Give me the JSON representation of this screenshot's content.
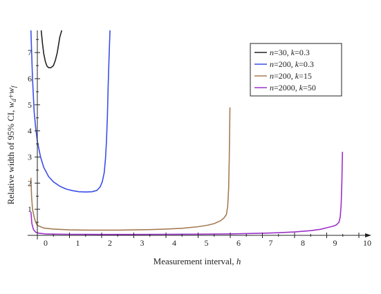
{
  "chart_data": {
    "type": "line",
    "xlabel": {
      "text": "Measurement interval, ",
      "var": "h"
    },
    "ylabel": {
      "text": "Relative width of 95% CI, ",
      "var": "wₙ+wₗ"
    },
    "ylabel_parts": [
      "Relative width of 95% CI, ",
      "w",
      "d",
      "+",
      "w",
      "f"
    ],
    "xlim": [
      -0.35,
      10.3
    ],
    "ylim": [
      0,
      7.85
    ],
    "xticks": [
      0,
      1,
      2,
      3,
      4,
      5,
      6,
      7,
      8,
      9,
      10
    ],
    "yticks": [
      1,
      2,
      3,
      4,
      5,
      6,
      7
    ],
    "grid": false,
    "legend_position": "top-right",
    "series": [
      {
        "name": "n=30, k=0.3",
        "legend_parts": [
          "n",
          "=30, ",
          "k",
          "=0.3"
        ],
        "color": "#222222",
        "x": [
          0.12,
          0.16,
          0.2,
          0.25,
          0.3,
          0.35,
          0.42,
          0.5,
          0.56,
          0.62,
          0.66,
          0.7,
          0.76
        ],
        "y": [
          7.85,
          7.35,
          6.95,
          6.65,
          6.48,
          6.42,
          6.42,
          6.5,
          6.7,
          7.0,
          7.3,
          7.6,
          7.85
        ]
      },
      {
        "name": "n=200, k=0.3",
        "legend_parts": [
          "n",
          "=200, ",
          "k",
          "=0.3"
        ],
        "color": "#3a4ee6",
        "x": [
          -0.2,
          -0.18,
          -0.15,
          -0.1,
          -0.05,
          0.0,
          0.1,
          0.2,
          0.35,
          0.5,
          0.7,
          0.9,
          1.1,
          1.3,
          1.5,
          1.7,
          1.85,
          1.95,
          2.02,
          2.08,
          2.12,
          2.15,
          2.18,
          2.2,
          2.23,
          2.26
        ],
        "y": [
          7.85,
          7.1,
          6.0,
          4.75,
          4.1,
          3.6,
          3.0,
          2.6,
          2.25,
          2.05,
          1.88,
          1.77,
          1.71,
          1.67,
          1.66,
          1.67,
          1.72,
          1.85,
          2.05,
          2.4,
          2.95,
          3.6,
          4.6,
          5.6,
          6.8,
          7.85
        ]
      },
      {
        "name": "n=200, k=15",
        "legend_parts": [
          "n",
          "=200, ",
          "k",
          "=15"
        ],
        "color": "#a57b52",
        "x": [
          -0.2,
          -0.18,
          -0.15,
          -0.1,
          -0.05,
          0.0,
          0.2,
          0.5,
          1.0,
          1.5,
          2.0,
          2.5,
          3.0,
          3.5,
          4.0,
          4.5,
          5.0,
          5.3,
          5.5,
          5.7,
          5.8,
          5.88,
          5.92,
          5.95,
          5.97,
          5.99
        ],
        "y": [
          2.2,
          1.5,
          1.0,
          0.7,
          0.5,
          0.38,
          0.28,
          0.24,
          0.21,
          0.2,
          0.2,
          0.2,
          0.21,
          0.22,
          0.24,
          0.27,
          0.33,
          0.39,
          0.45,
          0.56,
          0.66,
          0.8,
          1.1,
          1.8,
          3.0,
          4.9
        ]
      },
      {
        "name": "n=2000, k=50",
        "legend_parts": [
          "n",
          "=2000, ",
          "k",
          "=50"
        ],
        "color": "#9b30c8",
        "x": [
          -0.2,
          -0.17,
          -0.12,
          -0.05,
          0.05,
          0.3,
          1.0,
          2.0,
          3.0,
          4.0,
          5.0,
          6.0,
          7.0,
          7.5,
          8.0,
          8.5,
          8.8,
          9.0,
          9.2,
          9.3,
          9.38,
          9.42,
          9.45,
          9.47,
          9.49
        ],
        "y": [
          0.9,
          0.45,
          0.22,
          0.12,
          0.08,
          0.05,
          0.04,
          0.035,
          0.035,
          0.04,
          0.045,
          0.055,
          0.08,
          0.1,
          0.13,
          0.18,
          0.23,
          0.29,
          0.35,
          0.4,
          0.5,
          0.7,
          1.2,
          2.0,
          3.2
        ]
      }
    ]
  }
}
